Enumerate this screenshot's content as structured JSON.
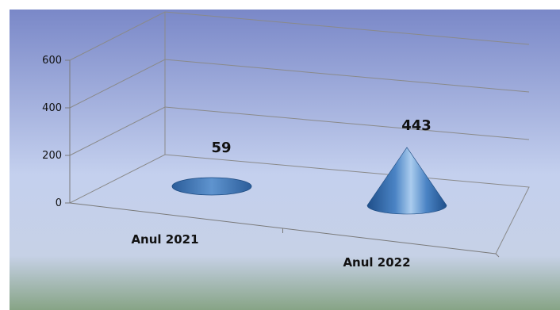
{
  "chart_data": {
    "type": "bar",
    "shape": "cone",
    "three_d": true,
    "categories": [
      "Anul 2021",
      "Anul 2022"
    ],
    "values": [
      59,
      443
    ],
    "data_labels": [
      "59",
      "443"
    ],
    "ylim": [
      0,
      600
    ],
    "yticks": [
      "0",
      "200",
      "400",
      "600"
    ],
    "grid": true,
    "legend": "none",
    "colors": {
      "cone": "#4a83c4",
      "cone_light": "#aaccee",
      "cone_dark": "#1f4f8a",
      "background_top": "#7a88c8",
      "background_mid": "#c4d0ee",
      "background_bottom": "#87a486"
    }
  }
}
